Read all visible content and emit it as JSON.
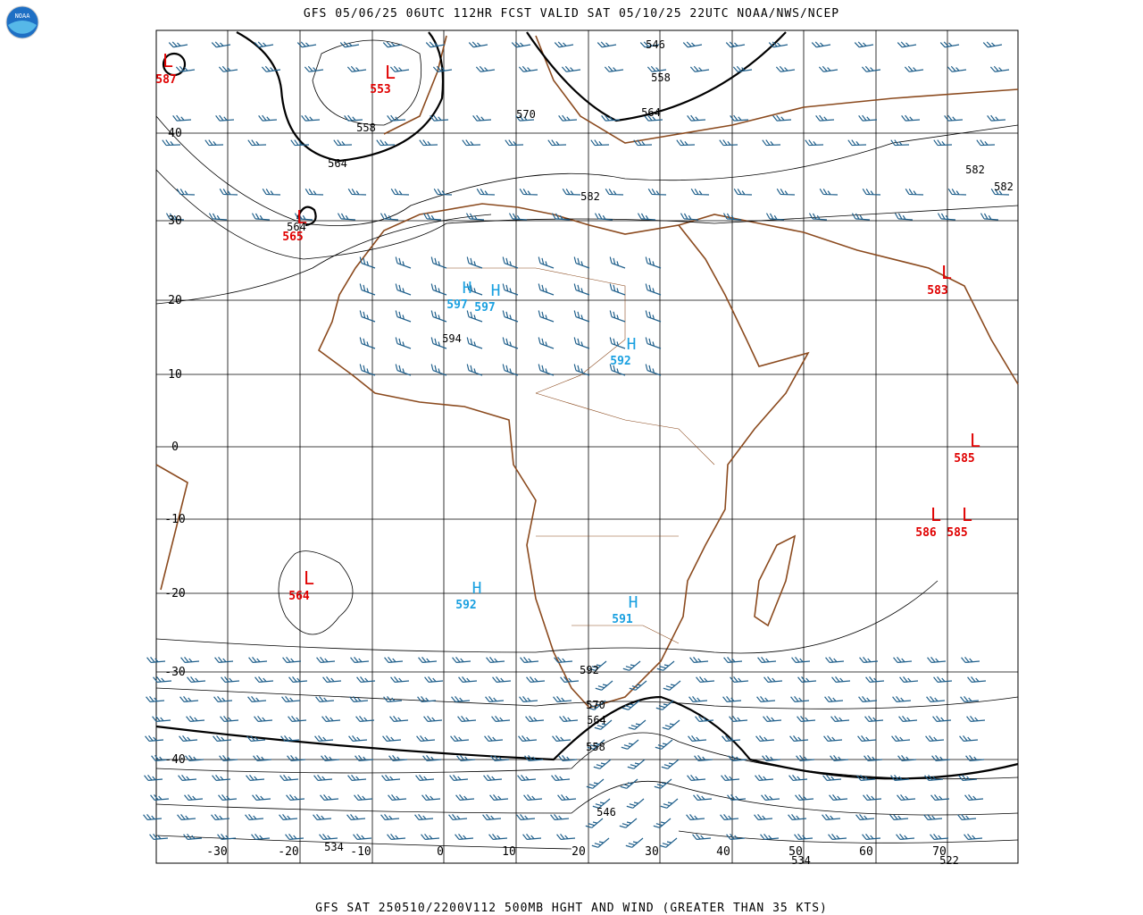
{
  "header": {
    "title": "GFS 05/06/25 06UTC 112HR FCST VALID SAT 05/10/25 22UTC NOAA/NWS/NCEP",
    "logo": "NOAA"
  },
  "footer": {
    "caption": "GFS SAT 250510/2200V112 500MB HGHT AND WIND (GREATER THAN 35 KTS)"
  },
  "map": {
    "lat_labels": [
      "40",
      "30",
      "20",
      "10",
      "0",
      "-10",
      "-20",
      "-30",
      "-40"
    ],
    "lon_labels": [
      "-30",
      "-20",
      "-10",
      "0",
      "10",
      "20",
      "30",
      "40",
      "50",
      "60",
      "70"
    ],
    "lows": [
      {
        "symbol": "L",
        "value": "587"
      },
      {
        "symbol": "L",
        "value": "553"
      },
      {
        "symbol": "L",
        "value": "565"
      },
      {
        "symbol": "L",
        "value": "564"
      },
      {
        "symbol": "L",
        "value": "583"
      },
      {
        "symbol": "L",
        "value": "585"
      },
      {
        "symbol": "L",
        "value": "586"
      },
      {
        "symbol": "L",
        "value": "585"
      }
    ],
    "highs": [
      {
        "symbol": "H",
        "value": "597"
      },
      {
        "symbol": "H",
        "value": "597"
      },
      {
        "symbol": "H",
        "value": "592"
      },
      {
        "symbol": "H",
        "value": "592"
      },
      {
        "symbol": "H",
        "value": "591"
      }
    ],
    "contour_labels": [
      "546",
      "558",
      "564",
      "570",
      "558",
      "564",
      "582",
      "582",
      "582",
      "564",
      "594",
      "592",
      "570",
      "564",
      "558",
      "546",
      "534",
      "534",
      "522"
    ]
  }
}
